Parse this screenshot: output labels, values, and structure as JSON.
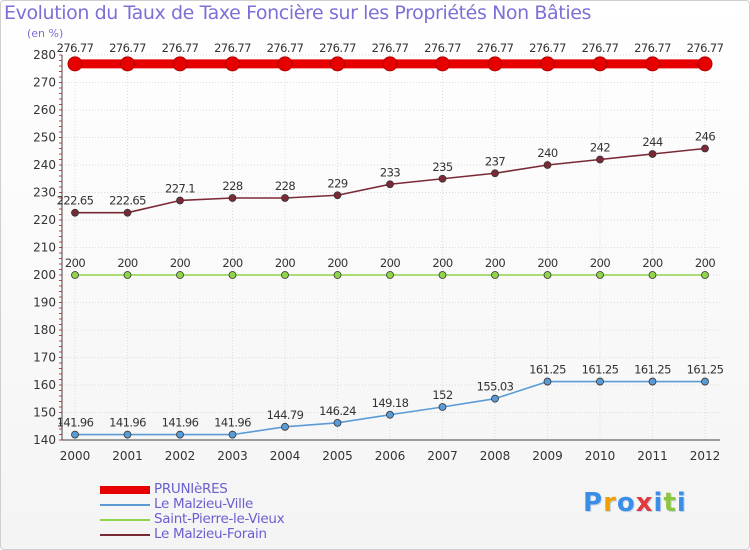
{
  "chart_data": {
    "type": "line",
    "title": "Evolution du Taux de Taxe Foncière sur les Propriétés Non Bâties",
    "ylabel": "(en %)",
    "xlabel": "",
    "ylim": [
      140,
      280
    ],
    "yticks": [
      "140",
      "150",
      "160",
      "170",
      "180",
      "190",
      "200",
      "210",
      "220",
      "230",
      "240",
      "250",
      "260",
      "270",
      "280"
    ],
    "categories": [
      "2000",
      "2001",
      "2002",
      "2003",
      "2004",
      "2005",
      "2006",
      "2007",
      "2008",
      "2009",
      "2010",
      "2011",
      "2012"
    ],
    "series": [
      {
        "name": "PRUNIèRES",
        "color": "#e60000",
        "values": [
          276.77,
          276.77,
          276.77,
          276.77,
          276.77,
          276.77,
          276.77,
          276.77,
          276.77,
          276.77,
          276.77,
          276.77,
          276.77
        ],
        "labels": [
          "276.77",
          "276.77",
          "276.77",
          "276.77",
          "276.77",
          "276.77",
          "276.77",
          "276.77",
          "276.77",
          "276.77",
          "276.77",
          "276.77",
          "276.77"
        ]
      },
      {
        "name": "Le Malzieu-Ville",
        "color": "#5b9bd5",
        "values": [
          141.96,
          141.96,
          141.96,
          141.96,
          144.79,
          146.24,
          149.18,
          152,
          155.03,
          161.25,
          161.25,
          161.25,
          161.25
        ],
        "labels": [
          "141.96",
          "141.96",
          "141.96",
          "141.96",
          "144.79",
          "146.24",
          "149.18",
          "152",
          "155.03",
          "161.25",
          "161.25",
          "161.25",
          "161.25"
        ]
      },
      {
        "name": "Saint-Pierre-le-Vieux",
        "color": "#8fd44a",
        "values": [
          200,
          200,
          200,
          200,
          200,
          200,
          200,
          200,
          200,
          200,
          200,
          200,
          200
        ],
        "labels": [
          "200",
          "200",
          "200",
          "200",
          "200",
          "200",
          "200",
          "200",
          "200",
          "200",
          "200",
          "200",
          "200"
        ]
      },
      {
        "name": "Le Malzieu-Forain",
        "color": "#7a2a35",
        "values": [
          222.65,
          222.65,
          227.1,
          228,
          228,
          229,
          233,
          235,
          237,
          240,
          242,
          244,
          246
        ],
        "labels": [
          "222.65",
          "222.65",
          "227.1",
          "228",
          "228",
          "229",
          "233",
          "235",
          "237",
          "240",
          "242",
          "244",
          "246"
        ]
      }
    ]
  },
  "logo": {
    "letters": [
      "P",
      "r",
      "o",
      "x",
      "i",
      "t",
      "i"
    ],
    "colors": [
      "#3a8ee6",
      "#f0a000",
      "#3a8ee6",
      "#e23a3a",
      "#3a8ee6",
      "#8cc63f",
      "#3a8ee6"
    ]
  }
}
